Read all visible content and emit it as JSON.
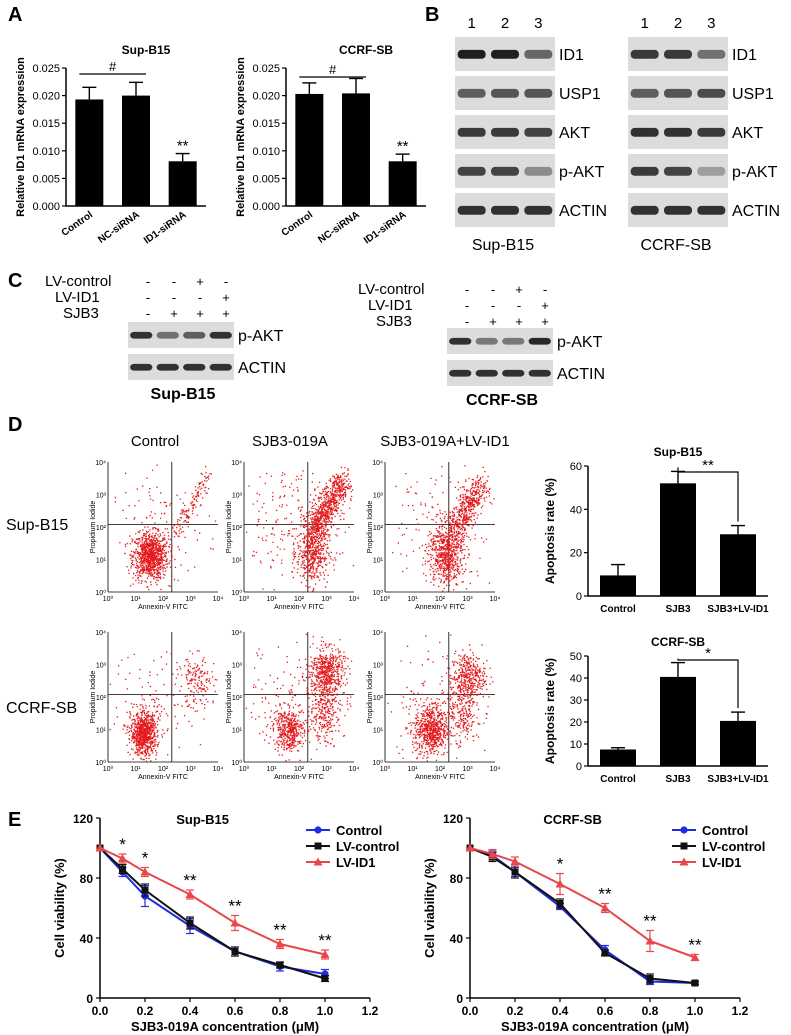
{
  "panel_letters": [
    "A",
    "B",
    "C",
    "D",
    "E"
  ],
  "panel_A": {
    "ylabel": "Relative ID1 mRNA expression",
    "sig_hash": "#",
    "sig_star": "**",
    "charts": [
      {
        "title": "Sup-B15",
        "categories": [
          "Control",
          "NC-siRNA",
          "ID1-siRNA"
        ],
        "values": [
          0.0193,
          0.02,
          0.0081
        ],
        "errors": [
          0.0022,
          0.0024,
          0.0014
        ],
        "ylim": [
          0,
          0.025
        ],
        "yticks": [
          "0.000",
          "0.005",
          "0.010",
          "0.015",
          "0.020",
          "0.025"
        ]
      },
      {
        "title": "CCRF-SB",
        "categories": [
          "Control",
          "NC-siRNA",
          "ID1-siRNA"
        ],
        "values": [
          0.0203,
          0.0204,
          0.0081
        ],
        "errors": [
          0.002,
          0.0027,
          0.0013
        ],
        "ylim": [
          0,
          0.025
        ],
        "yticks": [
          "0.000",
          "0.005",
          "0.010",
          "0.015",
          "0.020",
          "0.025"
        ]
      }
    ]
  },
  "panel_B": {
    "lanes": [
      "1",
      "2",
      "3"
    ],
    "proteins": [
      "ID1",
      "USP1",
      "AKT",
      "p-AKT",
      "ACTIN"
    ],
    "blots": [
      {
        "label": "Sup-B15",
        "intensity": [
          [
            0.95,
            0.95,
            0.55
          ],
          [
            0.6,
            0.65,
            0.65
          ],
          [
            0.8,
            0.8,
            0.75
          ],
          [
            0.75,
            0.75,
            0.35
          ],
          [
            0.85,
            0.85,
            0.85
          ]
        ]
      },
      {
        "label": "CCRF-SB",
        "intensity": [
          [
            0.8,
            0.8,
            0.5
          ],
          [
            0.6,
            0.65,
            0.7
          ],
          [
            0.85,
            0.85,
            0.8
          ],
          [
            0.8,
            0.75,
            0.25
          ],
          [
            0.85,
            0.85,
            0.85
          ]
        ]
      }
    ]
  },
  "panel_C": {
    "row_labels": [
      "LV-control",
      "LV-ID1",
      "SJB3"
    ],
    "conditions": [
      [
        "-",
        "-",
        "+",
        "-"
      ],
      [
        "-",
        "-",
        "-",
        "+"
      ],
      [
        "-",
        "+",
        "+",
        "+"
      ]
    ],
    "proteins": [
      "p-AKT",
      "ACTIN"
    ],
    "blots": [
      {
        "label": "Sup-B15",
        "intensity": [
          [
            0.85,
            0.5,
            0.6,
            0.85
          ],
          [
            0.85,
            0.85,
            0.85,
            0.85
          ]
        ]
      },
      {
        "label": "CCRF-SB",
        "intensity": [
          [
            0.85,
            0.45,
            0.45,
            0.9
          ],
          [
            0.85,
            0.85,
            0.85,
            0.85
          ]
        ]
      }
    ]
  },
  "panel_D": {
    "column_titles": [
      "Control",
      "SJB3-019A",
      "SJB3-019A+LV-ID1"
    ],
    "row_labels": [
      "Sup-B15",
      "CCRF-SB"
    ],
    "flow_xlabel": "Annexin-V FITC",
    "flow_ylabel": "Propidium Iodide",
    "flow_ticks": [
      "10⁰",
      "10¹",
      "10²",
      "10³",
      "10⁴"
    ],
    "bar_ylabel": "Apoptosis rate (%)",
    "charts": [
      {
        "title": "Sup-B15",
        "categories": [
          "Control",
          "SJB3",
          "SJB3+LV-ID1"
        ],
        "values": [
          9.5,
          52,
          28.5
        ],
        "errors": [
          5,
          5.5,
          4
        ],
        "ylim": [
          0,
          60
        ],
        "yticks": [
          "0",
          "20",
          "40",
          "60"
        ],
        "significance": "**"
      },
      {
        "title": "CCRF-SB",
        "categories": [
          "Control",
          "SJB3",
          "SJB3+LV-ID1"
        ],
        "values": [
          7.5,
          40.5,
          20.5
        ],
        "errors": [
          0.8,
          6.5,
          4
        ],
        "ylim": [
          0,
          50
        ],
        "yticks": [
          "0",
          "10",
          "20",
          "30",
          "40",
          "50"
        ],
        "significance": "*"
      }
    ]
  },
  "panel_E": {
    "xlabel": "SJB3-019A concentration (μM)",
    "ylabel": "Cell viability (%)",
    "xticks": [
      "0.0",
      "0.2",
      "0.4",
      "0.6",
      "0.8",
      "1.0",
      "1.2"
    ],
    "yticks": [
      "0",
      "40",
      "80",
      "120"
    ],
    "colors": {
      "Control": "#1f2ce0",
      "LV-control": "#111111",
      "LV-ID1": "#e8474b"
    },
    "charts": [
      {
        "title": "Sup-B15",
        "x": [
          0,
          0.1,
          0.2,
          0.4,
          0.6,
          0.8,
          1.0
        ],
        "series": [
          {
            "name": "Control",
            "values": [
              100,
              84,
              68,
              48,
              31,
              21,
              16
            ],
            "errors": [
              0,
              3,
              7,
              5,
              3,
              3,
              3
            ]
          },
          {
            "name": "LV-control",
            "values": [
              100,
              86,
              72,
              50,
              31,
              22,
              13
            ],
            "errors": [
              0,
              3,
              4,
              4,
              3,
              2,
              2
            ]
          },
          {
            "name": "LV-ID1",
            "values": [
              100,
              93,
              84,
              69,
              50,
              36,
              29
            ],
            "errors": [
              0,
              3,
              3,
              3,
              5,
              3,
              3
            ]
          }
        ],
        "annotations": [
          {
            "x": 0.1,
            "text": "*"
          },
          {
            "x": 0.2,
            "text": "*"
          },
          {
            "x": 0.4,
            "text": "**"
          },
          {
            "x": 0.6,
            "text": "**"
          },
          {
            "x": 0.8,
            "text": "**"
          },
          {
            "x": 1.0,
            "text": "**"
          }
        ]
      },
      {
        "title": "CCRF-SB",
        "x": [
          0,
          0.1,
          0.2,
          0.4,
          0.6,
          0.8,
          1.0
        ],
        "series": [
          {
            "name": "Control",
            "values": [
              100,
              95,
              84,
              61,
              32,
              11,
              10
            ],
            "errors": [
              0,
              3,
              3,
              2,
              3,
              2,
              1
            ]
          },
          {
            "name": "LV-control",
            "values": [
              100,
              94,
              84,
              63,
              30,
              13,
              10
            ],
            "errors": [
              0,
              3,
              4,
              3,
              2,
              3,
              1
            ]
          },
          {
            "name": "LV-ID1",
            "values": [
              100,
              96,
              91,
              76,
              60,
              38,
              27
            ],
            "errors": [
              0,
              3,
              3,
              7,
              3,
              7,
              2
            ]
          }
        ],
        "annotations": [
          {
            "x": 0.4,
            "text": "*"
          },
          {
            "x": 0.6,
            "text": "**"
          },
          {
            "x": 0.8,
            "text": "**"
          },
          {
            "x": 1.0,
            "text": "**"
          }
        ]
      }
    ]
  },
  "chart_data": [
    {
      "type": "bar",
      "title": "Sup-B15",
      "categories": [
        "Control",
        "NC-siRNA",
        "ID1-siRNA"
      ],
      "values": [
        0.0193,
        0.02,
        0.0081
      ],
      "ylabel": "Relative ID1 mRNA expression",
      "ylim": [
        0,
        0.025
      ]
    },
    {
      "type": "bar",
      "title": "CCRF-SB",
      "categories": [
        "Control",
        "NC-siRNA",
        "ID1-siRNA"
      ],
      "values": [
        0.0203,
        0.0204,
        0.0081
      ],
      "ylabel": "Relative ID1 mRNA expression",
      "ylim": [
        0,
        0.025
      ]
    },
    {
      "type": "bar",
      "title": "Sup-B15",
      "categories": [
        "Control",
        "SJB3",
        "SJB3+LV-ID1"
      ],
      "values": [
        9.5,
        52,
        28.5
      ],
      "ylabel": "Apoptosis rate (%)",
      "ylim": [
        0,
        60
      ]
    },
    {
      "type": "bar",
      "title": "CCRF-SB",
      "categories": [
        "Control",
        "SJB3",
        "SJB3+LV-ID1"
      ],
      "values": [
        7.5,
        40.5,
        20.5
      ],
      "ylabel": "Apoptosis rate (%)",
      "ylim": [
        0,
        50
      ]
    },
    {
      "type": "line",
      "title": "Sup-B15",
      "x": [
        0,
        0.1,
        0.2,
        0.4,
        0.6,
        0.8,
        1.0
      ],
      "xlabel": "SJB3-019A concentration (μM)",
      "ylabel": "Cell viability (%)",
      "xlim": [
        0,
        1.2
      ],
      "ylim": [
        0,
        120
      ],
      "series": [
        {
          "name": "Control",
          "values": [
            100,
            84,
            68,
            48,
            31,
            21,
            16
          ]
        },
        {
          "name": "LV-control",
          "values": [
            100,
            86,
            72,
            50,
            31,
            22,
            13
          ]
        },
        {
          "name": "LV-ID1",
          "values": [
            100,
            93,
            84,
            69,
            50,
            36,
            29
          ]
        }
      ]
    },
    {
      "type": "line",
      "title": "CCRF-SB",
      "x": [
        0,
        0.1,
        0.2,
        0.4,
        0.6,
        0.8,
        1.0
      ],
      "xlabel": "SJB3-019A concentration (μM)",
      "ylabel": "Cell viability (%)",
      "xlim": [
        0,
        1.2
      ],
      "ylim": [
        0,
        120
      ],
      "series": [
        {
          "name": "Control",
          "values": [
            100,
            95,
            84,
            61,
            32,
            11,
            10
          ]
        },
        {
          "name": "LV-control",
          "values": [
            100,
            94,
            84,
            63,
            30,
            13,
            10
          ]
        },
        {
          "name": "LV-ID1",
          "values": [
            100,
            96,
            91,
            76,
            60,
            38,
            27
          ]
        }
      ]
    }
  ]
}
